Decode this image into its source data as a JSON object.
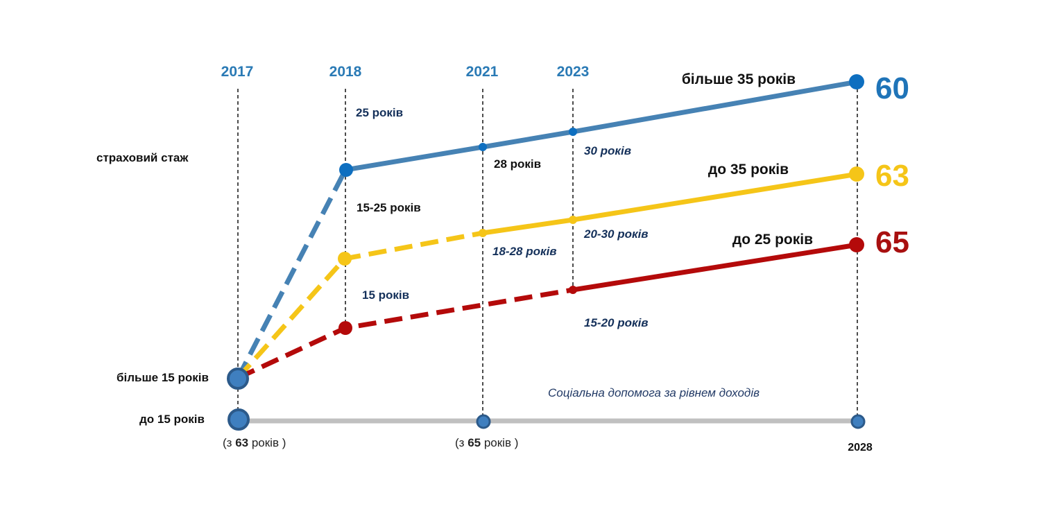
{
  "years": [
    "2017",
    "2018",
    "2021",
    "2023",
    "2028"
  ],
  "labels": {
    "insurance_record": "страховий стаж",
    "over_15": "більше 15 років",
    "up_to_15": "до 15 років",
    "social_assistance": "Соціальна допомога за рівнем доходів",
    "sub_63_prefix": "(з ",
    "sub_63_bold": "63",
    "sub_63_suffix": " років )",
    "sub_65_prefix": "(з ",
    "sub_65_bold": "65",
    "sub_65_suffix": " років )"
  },
  "colors": {
    "blue": "#4682b4",
    "blue_dot": "#0e6fc0",
    "yellow": "#f5c518",
    "red": "#b40a0a",
    "gray": "#c0c0c0",
    "base_dot": "#2f6aa8",
    "year": "#2a7ab5",
    "age_blue": "#1f74b8",
    "age_yellow": "#f5c518",
    "age_red": "#a81010"
  },
  "series": [
    {
      "key": "blue",
      "group_label": "більше 35 років",
      "retirement_age": "60",
      "stage_labels": [
        "25 років",
        "28 років",
        "30 років"
      ]
    },
    {
      "key": "yellow",
      "group_label": "до 35 років",
      "retirement_age": "63",
      "stage_labels": [
        "15-25 років",
        "18-28 років",
        "20-30 років"
      ]
    },
    {
      "key": "red",
      "group_label": "до 25 років",
      "retirement_age": "65",
      "stage_labels": [
        "15 років",
        "15-20 років"
      ]
    }
  ]
}
